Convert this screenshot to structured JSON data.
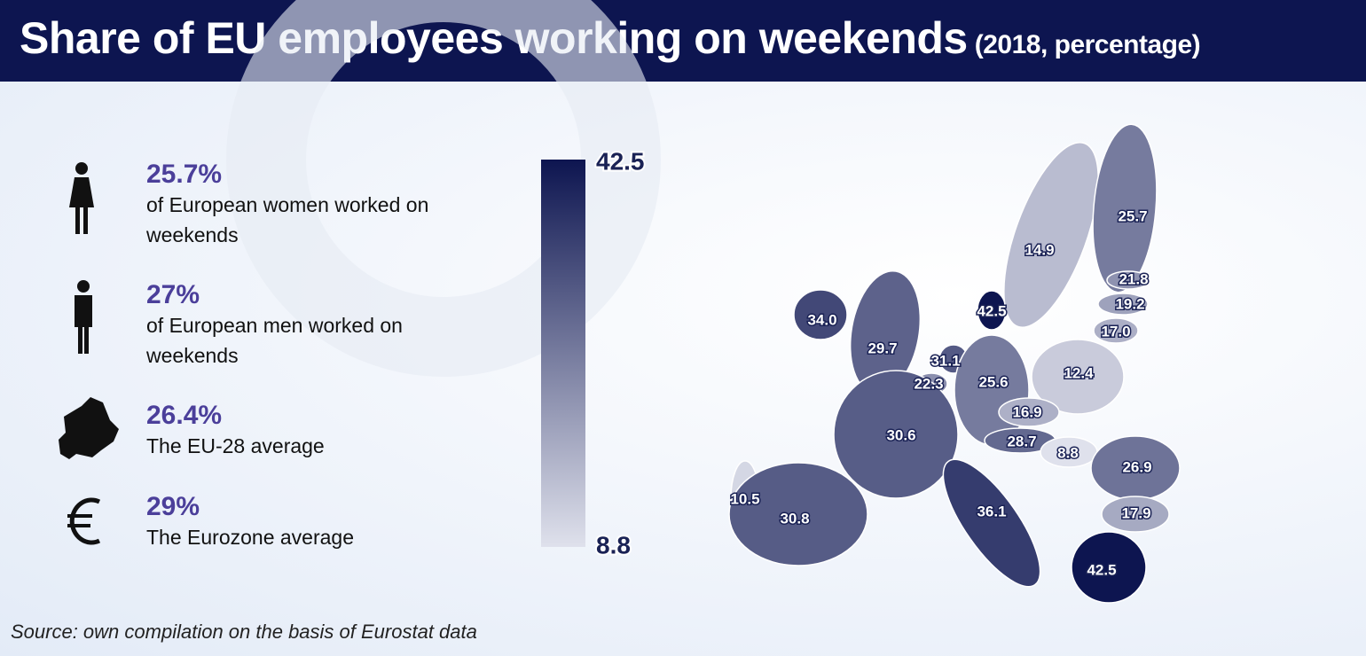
{
  "header": {
    "title": "Share of EU employees working on weekends",
    "subtitle": "(2018, percentage)"
  },
  "stats": [
    {
      "value": "25.7%",
      "text": "of European women worked on weekends"
    },
    {
      "value": "27%",
      "text": "of European men worked on weekends"
    },
    {
      "value": "26.4%",
      "text": "The EU-28 average"
    },
    {
      "value": "29%",
      "text": "The Eurozone average"
    }
  ],
  "scale": {
    "min": 8.8,
    "max": 42.5,
    "color_low": "#dfe1ec",
    "color_high": "#0d1550"
  },
  "map": {
    "values": [
      34.0,
      29.7,
      42.5,
      14.9,
      25.7,
      21.8,
      19.2,
      17.0,
      31.1,
      22.3,
      25.6,
      12.4,
      16.9,
      28.7,
      8.8,
      30.6,
      26.9,
      10.5,
      30.8,
      36.1,
      17.9,
      42.5
    ],
    "value_labels": [
      "34.0",
      "29.7",
      "42.5",
      "14.9",
      "25.7",
      "21.8",
      "19.2",
      "17.0",
      "31.1",
      "22.3",
      "25.6",
      "12.4",
      "16.9",
      "28.7",
      "8.8",
      "30.6",
      "26.9",
      "10.5",
      "30.8",
      "36.1",
      "17.9",
      "42.5"
    ]
  },
  "source": "Source: own compilation on the basis of Eurostat data"
}
